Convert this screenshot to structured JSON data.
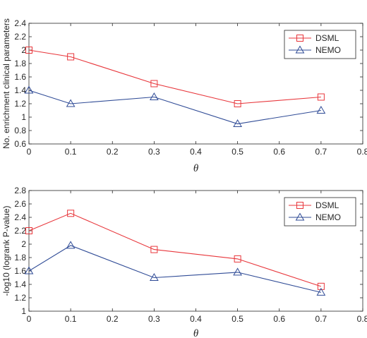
{
  "chart_data": [
    {
      "type": "line",
      "x": [
        0,
        0.1,
        0.3,
        0.5,
        0.7
      ],
      "series": [
        {
          "name": "DSML",
          "values": [
            2.0,
            1.9,
            1.5,
            1.2,
            1.3
          ],
          "color": "#e8363b",
          "marker": "square"
        },
        {
          "name": "NEMO",
          "values": [
            1.4,
            1.2,
            1.3,
            0.9,
            1.1
          ],
          "color": "#2f4b96",
          "marker": "triangle"
        }
      ],
      "xlabel": "θ",
      "ylabel": "No. enrichment clinical parameters",
      "xlim": [
        0,
        0.8
      ],
      "ylim": [
        0.6,
        2.4
      ],
      "xticks": [
        "0",
        "0.1",
        "0.2",
        "0.3",
        "0.4",
        "0.5",
        "0.6",
        "0.7",
        "0.8"
      ],
      "yticks": [
        "0.6",
        "0.8",
        "1",
        "1.2",
        "1.4",
        "1.6",
        "1.8",
        "2",
        "2.2",
        "2.4"
      ],
      "grid": false,
      "legend_position": "top-right"
    },
    {
      "type": "line",
      "x": [
        0,
        0.1,
        0.3,
        0.5,
        0.7
      ],
      "series": [
        {
          "name": "DSML",
          "values": [
            2.2,
            2.46,
            1.92,
            1.78,
            1.37
          ],
          "color": "#e8363b",
          "marker": "square"
        },
        {
          "name": "NEMO",
          "values": [
            1.6,
            1.98,
            1.5,
            1.58,
            1.28
          ],
          "color": "#2f4b96",
          "marker": "triangle"
        }
      ],
      "xlabel": "θ",
      "ylabel": "-log10 (logrank P-value)",
      "xlim": [
        0,
        0.8
      ],
      "ylim": [
        1,
        2.8
      ],
      "xticks": [
        "0",
        "0.1",
        "0.2",
        "0.3",
        "0.4",
        "0.5",
        "0.6",
        "0.7",
        "0.8"
      ],
      "yticks": [
        "1",
        "1.2",
        "1.4",
        "1.6",
        "1.8",
        "2",
        "2.2",
        "2.4",
        "2.6",
        "2.8"
      ],
      "grid": false,
      "legend_position": "top-right"
    }
  ]
}
